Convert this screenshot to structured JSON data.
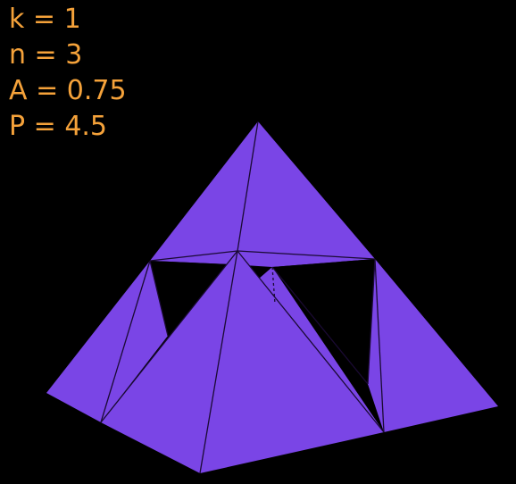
{
  "parameters": [
    {
      "label": "k",
      "value": "1"
    },
    {
      "label": "n",
      "value": "3"
    },
    {
      "label": "A",
      "value": "0.75"
    },
    {
      "label": "P",
      "value": "4.5"
    }
  ],
  "colors": {
    "background": "#000000",
    "face": "#7a45e6",
    "face_shadow": "#6f3fdc",
    "edge": "#1a0a33",
    "text": "#f5a23a"
  },
  "shape": {
    "name": "sierpinski-tetrahedron-level-1"
  }
}
